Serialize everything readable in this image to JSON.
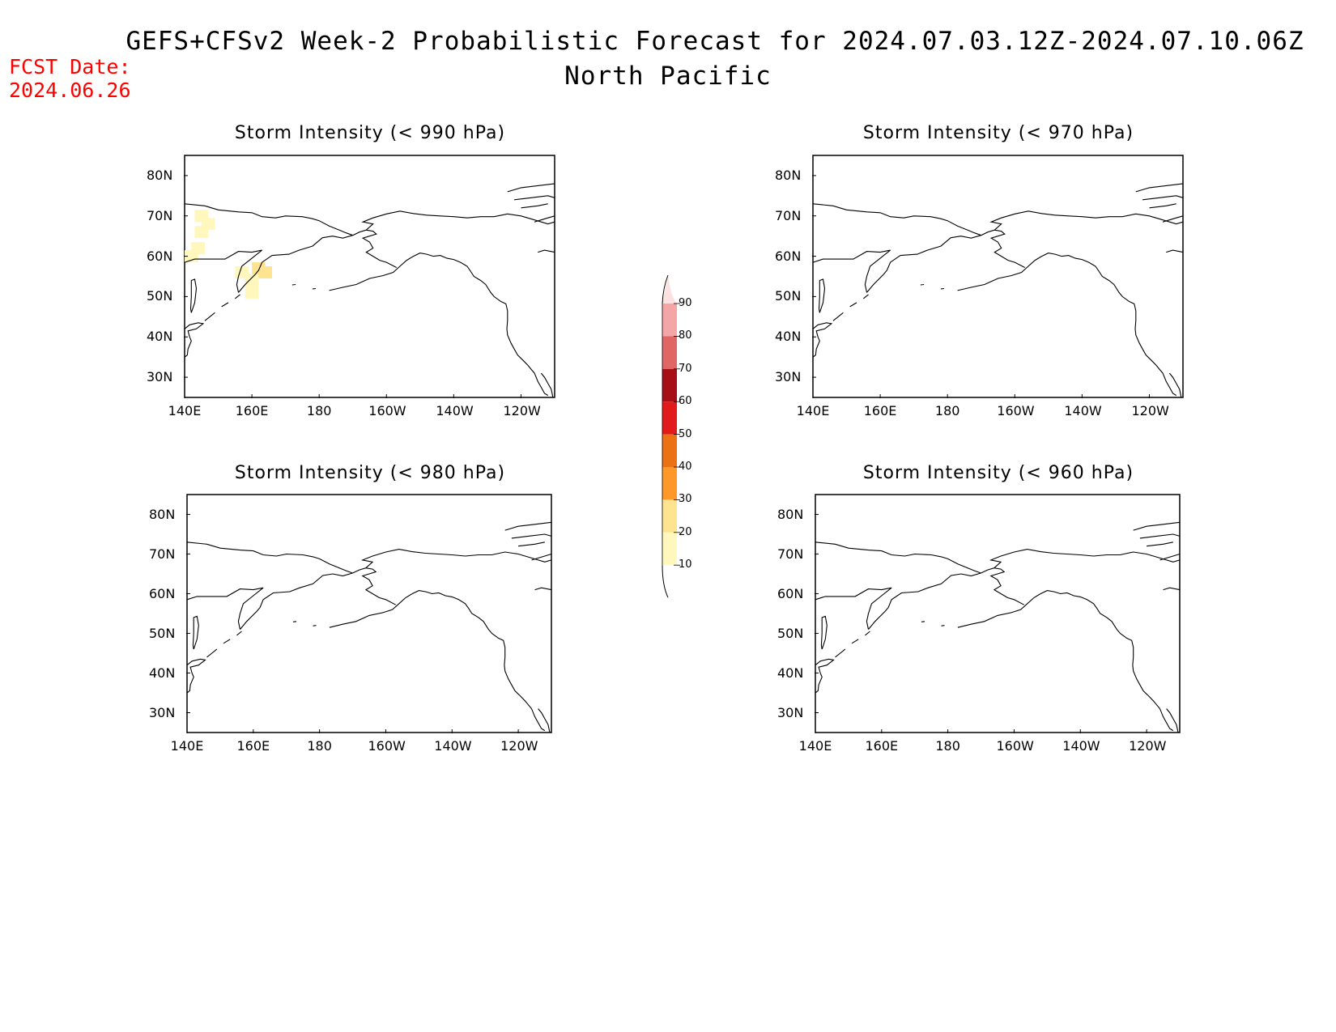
{
  "header": {
    "title": "GEFS+CFSv2 Week-2 Probabilistic Forecast for 2024.07.03.12Z-2024.07.10.06Z",
    "subtitle": "North Pacific",
    "fcst_label": "FCST Date:",
    "fcst_date": "2024.06.26"
  },
  "panels": [
    {
      "title": "Storm Intensity (< 990 hPa)"
    },
    {
      "title": "Storm Intensity (< 970 hPa)"
    },
    {
      "title": "Storm Intensity (< 980 hPa)"
    },
    {
      "title": "Storm Intensity (< 960 hPa)"
    }
  ],
  "axes": {
    "lat_labels": [
      "80N",
      "70N",
      "60N",
      "50N",
      "40N",
      "30N"
    ],
    "lon_labels": [
      "140E",
      "160E",
      "180",
      "160W",
      "140W",
      "120W"
    ]
  },
  "colorbar": {
    "levels": [
      "10",
      "20",
      "30",
      "40",
      "50",
      "60",
      "70",
      "80",
      "90"
    ],
    "colors": [
      "#fff7bc",
      "#fee391",
      "#fe9929",
      "#ec7014",
      "#e31a1c",
      "#a50f15",
      "#e06666",
      "#f4a6a6",
      "#fde0e0"
    ]
  },
  "probability_cells_990": {
    "units": "percent",
    "cells": [
      {
        "lon": 145,
        "lat": 70,
        "prob": 10
      },
      {
        "lon": 147,
        "lat": 68,
        "prob": 10
      },
      {
        "lon": 145,
        "lat": 66,
        "prob": 10
      },
      {
        "lon": 144,
        "lat": 62,
        "prob": 10
      },
      {
        "lon": 142,
        "lat": 60,
        "prob": 10
      },
      {
        "lon": 157,
        "lat": 56,
        "prob": 10
      },
      {
        "lon": 160,
        "lat": 54,
        "prob": 10
      },
      {
        "lon": 162,
        "lat": 57,
        "prob": 20
      },
      {
        "lon": 164,
        "lat": 56,
        "prob": 20
      },
      {
        "lon": 160,
        "lat": 51,
        "prob": 10
      }
    ]
  }
}
